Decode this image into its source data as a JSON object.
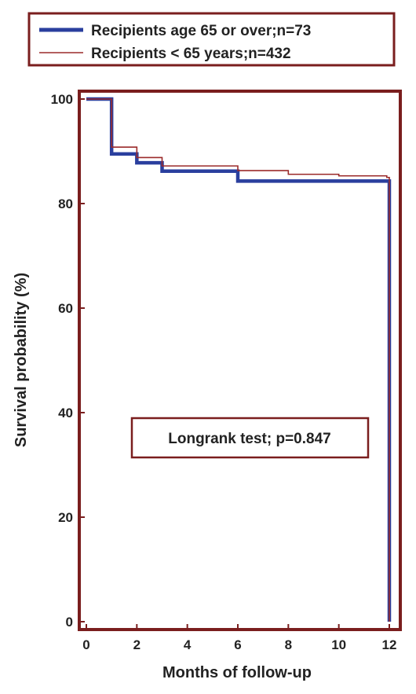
{
  "chart_data": {
    "type": "line",
    "step": true,
    "xlabel": "Months of follow-up",
    "ylabel": "Survival probability (%)",
    "xlim": [
      0,
      12
    ],
    "ylim": [
      0,
      100
    ],
    "x_ticks": [
      "0",
      "2",
      "4",
      "6",
      "8",
      "10",
      "12"
    ],
    "y_ticks": [
      "0",
      "20",
      "40",
      "60",
      "80",
      "100"
    ],
    "grid": false,
    "legend_position": "top",
    "annotation": "Longrank test; p=0.847",
    "frame_color": "#7a1e1e",
    "series": [
      {
        "name": "Recipients age 65 or over;n=73",
        "color": "#2a3f9e",
        "x": [
          0,
          1,
          2,
          3,
          6,
          11.9,
          12
        ],
        "y": [
          100,
          89.5,
          87.8,
          86.2,
          84.3,
          84.3,
          0
        ]
      },
      {
        "name": "Recipients < 65 years;n=432",
        "color": "#9b2a2a",
        "x": [
          0,
          1,
          2,
          3,
          6,
          8,
          10,
          11.9,
          12
        ],
        "y": [
          100,
          90.8,
          88.8,
          87.2,
          86.3,
          85.6,
          85.3,
          85.0,
          0
        ]
      }
    ]
  }
}
